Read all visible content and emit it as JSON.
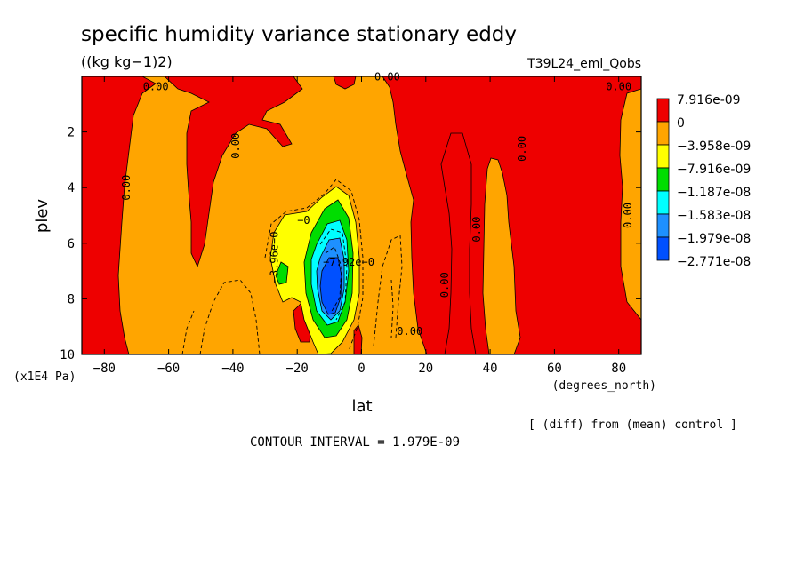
{
  "chart_data": {
    "type": "heatmap",
    "title": "specific humidity variance stationary eddy",
    "units": "((kg kg−1)2)",
    "experiment": "T39L24_eml_Qobs",
    "xlabel": "lat",
    "x_units": "(degrees_north)",
    "ylabel": "plev",
    "y_units": "(x1E4 Pa)",
    "xlim": [
      -87,
      87
    ],
    "ylim": [
      10,
      0
    ],
    "x_ticks": [
      "−80",
      "−60",
      "−40",
      "−20",
      "0",
      "20",
      "40",
      "60",
      "80"
    ],
    "x_tick_values": [
      -80,
      -60,
      -40,
      -20,
      0,
      20,
      40,
      60,
      80
    ],
    "y_ticks": [
      "2",
      "4",
      "6",
      "8",
      "10"
    ],
    "y_tick_values": [
      2,
      4,
      6,
      8,
      10
    ],
    "legend": [
      {
        "label": "7.916e-09",
        "color": "#ee0000"
      },
      {
        "label": "0",
        "color": "#ffa500"
      },
      {
        "label": "−3.958e-09",
        "color": "#ffff00"
      },
      {
        "label": "−7.916e-09",
        "color": "#00dd00"
      },
      {
        "label": "−1.187e-08",
        "color": "#00ffff"
      },
      {
        "label": "−1.583e-08",
        "color": "#1e90ff"
      },
      {
        "label": "−1.979e-08",
        "color": "#0050ff"
      },
      {
        "label": "−2.771e-08",
        "color": ""
      }
    ],
    "contour_labels": [
      {
        "text": "0.00",
        "x": -64,
        "y": 0.5
      },
      {
        "text": "0.00",
        "x": 8,
        "y": 0.15
      },
      {
        "text": "0.00",
        "x": 80,
        "y": 0.5
      },
      {
        "text": "0.00",
        "x": -38,
        "y": 2.5
      },
      {
        "text": "0.00",
        "x": -72,
        "y": 4
      },
      {
        "text": "0.00",
        "x": 51,
        "y": 2.6
      },
      {
        "text": "0.00",
        "x": 37,
        "y": 5.5
      },
      {
        "text": "0.00",
        "x": 84,
        "y": 5
      },
      {
        "text": "0.00",
        "x": 27,
        "y": 7.5
      },
      {
        "text": "0.00",
        "x": 15,
        "y": 9.3
      },
      {
        "text": "−0",
        "x": -18,
        "y": 5.3
      },
      {
        "text": "−3.96e−0",
        "x": -26,
        "y": 6.5
      },
      {
        "text": "−7.92e−0",
        "x": -4,
        "y": 6.8
      }
    ],
    "contour_interval": "CONTOUR INTERVAL = 1.979E-09",
    "note": "[ (diff) from (mean) control ]"
  }
}
